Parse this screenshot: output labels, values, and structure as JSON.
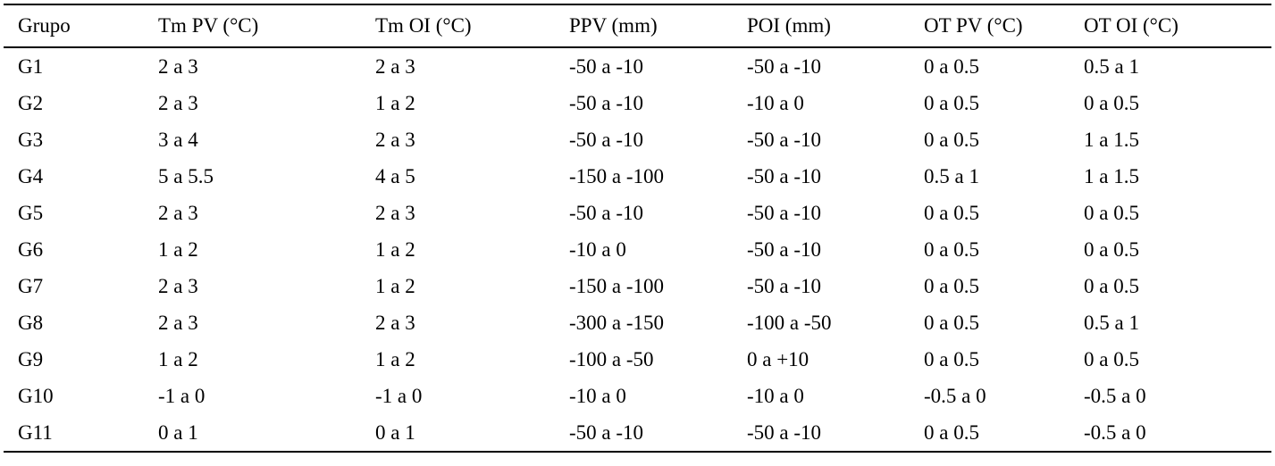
{
  "chart_data": {
    "type": "table",
    "headers": [
      "Grupo",
      "Tm PV (°C)",
      "Tm OI (°C)",
      "PPV (mm)",
      "POI (mm)",
      "OT PV (°C)",
      "OT OI (°C)"
    ],
    "rows": [
      {
        "cells": [
          "G1",
          "2 a 3",
          "2 a 3",
          "-50 a -10",
          "-50 a -10",
          "0 a 0.5",
          "0.5 a 1"
        ]
      },
      {
        "cells": [
          "G2",
          "2 a 3",
          "1 a 2",
          "-50 a -10",
          "-10 a 0",
          "0 a 0.5",
          "0 a 0.5"
        ]
      },
      {
        "cells": [
          "G3",
          "3 a 4",
          "2 a 3",
          "-50 a -10",
          "-50 a -10",
          "0 a 0.5",
          "1 a 1.5"
        ]
      },
      {
        "cells": [
          "G4",
          "5 a 5.5",
          "4 a 5",
          "-150 a -100",
          "-50 a -10",
          "0.5 a 1",
          "1 a 1.5"
        ]
      },
      {
        "cells": [
          "G5",
          "2 a 3",
          "2 a 3",
          "-50 a -10",
          "-50 a -10",
          "0 a 0.5",
          "0 a 0.5"
        ]
      },
      {
        "cells": [
          "G6",
          "1 a 2",
          "1 a 2",
          "-10 a 0",
          "-50 a -10",
          "0 a 0.5",
          "0 a 0.5"
        ]
      },
      {
        "cells": [
          "G7",
          "2 a 3",
          "1 a 2",
          "-150 a -100",
          "-50 a -10",
          "0 a 0.5",
          "0 a 0.5"
        ]
      },
      {
        "cells": [
          "G8",
          "2 a 3",
          "2 a 3",
          "-300 a -150",
          "-100 a -50",
          "0 a 0.5",
          "0.5 a 1"
        ]
      },
      {
        "cells": [
          "G9",
          "1 a 2",
          "1 a 2",
          "-100 a -50",
          "0 a +10",
          "0 a 0.5",
          "0 a 0.5"
        ]
      },
      {
        "cells": [
          "G10",
          "-1 a 0",
          "-1 a 0",
          "-10 a 0",
          "-10 a 0",
          "-0.5 a 0",
          "-0.5 a 0"
        ]
      },
      {
        "cells": [
          "G11",
          "0 a 1",
          "0 a 1",
          "-50 a -10",
          "-50 a -10",
          "0 a 0.5",
          "-0.5 a 0"
        ]
      }
    ]
  }
}
